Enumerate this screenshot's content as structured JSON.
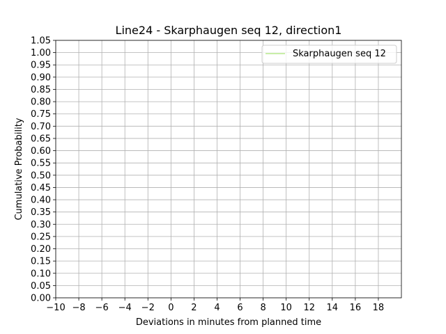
{
  "chart_data": {
    "type": "line",
    "title": "Line24 - Skarphaugen seq 12, direction1",
    "xlabel": "Deviations in minutes from planned time",
    "ylabel": "Cumulative Probability",
    "xlim": [
      -10,
      20
    ],
    "ylim": [
      0,
      1.05
    ],
    "x_ticks": [
      -10,
      -8,
      -6,
      -4,
      -2,
      0,
      2,
      4,
      6,
      8,
      10,
      12,
      14,
      16,
      18
    ],
    "x_tick_labels": [
      "−10",
      "−8",
      "−6",
      "−4",
      "−2",
      "0",
      "2",
      "4",
      "6",
      "8",
      "10",
      "12",
      "14",
      "16",
      "18"
    ],
    "y_ticks": [
      0,
      0.05,
      0.1,
      0.15,
      0.2,
      0.25,
      0.3,
      0.35,
      0.4,
      0.45,
      0.5,
      0.55,
      0.6,
      0.65,
      0.7,
      0.75,
      0.8,
      0.85,
      0.9,
      0.95,
      1.0,
      1.05
    ],
    "y_tick_labels": [
      "0.00",
      "0.05",
      "0.10",
      "0.15",
      "0.20",
      "0.25",
      "0.30",
      "0.35",
      "0.40",
      "0.45",
      "0.50",
      "0.55",
      "0.60",
      "0.65",
      "0.70",
      "0.75",
      "0.80",
      "0.85",
      "0.90",
      "0.95",
      "1.00",
      "1.05"
    ],
    "grid": true,
    "legend_position": "top-right",
    "series": [
      {
        "name": "Skarphaugen seq 12",
        "color": "#b5e88c",
        "x": [],
        "y": []
      }
    ],
    "colors": {
      "grid": "#b0b0b0",
      "axes": "#000000",
      "background": "#ffffff"
    }
  }
}
